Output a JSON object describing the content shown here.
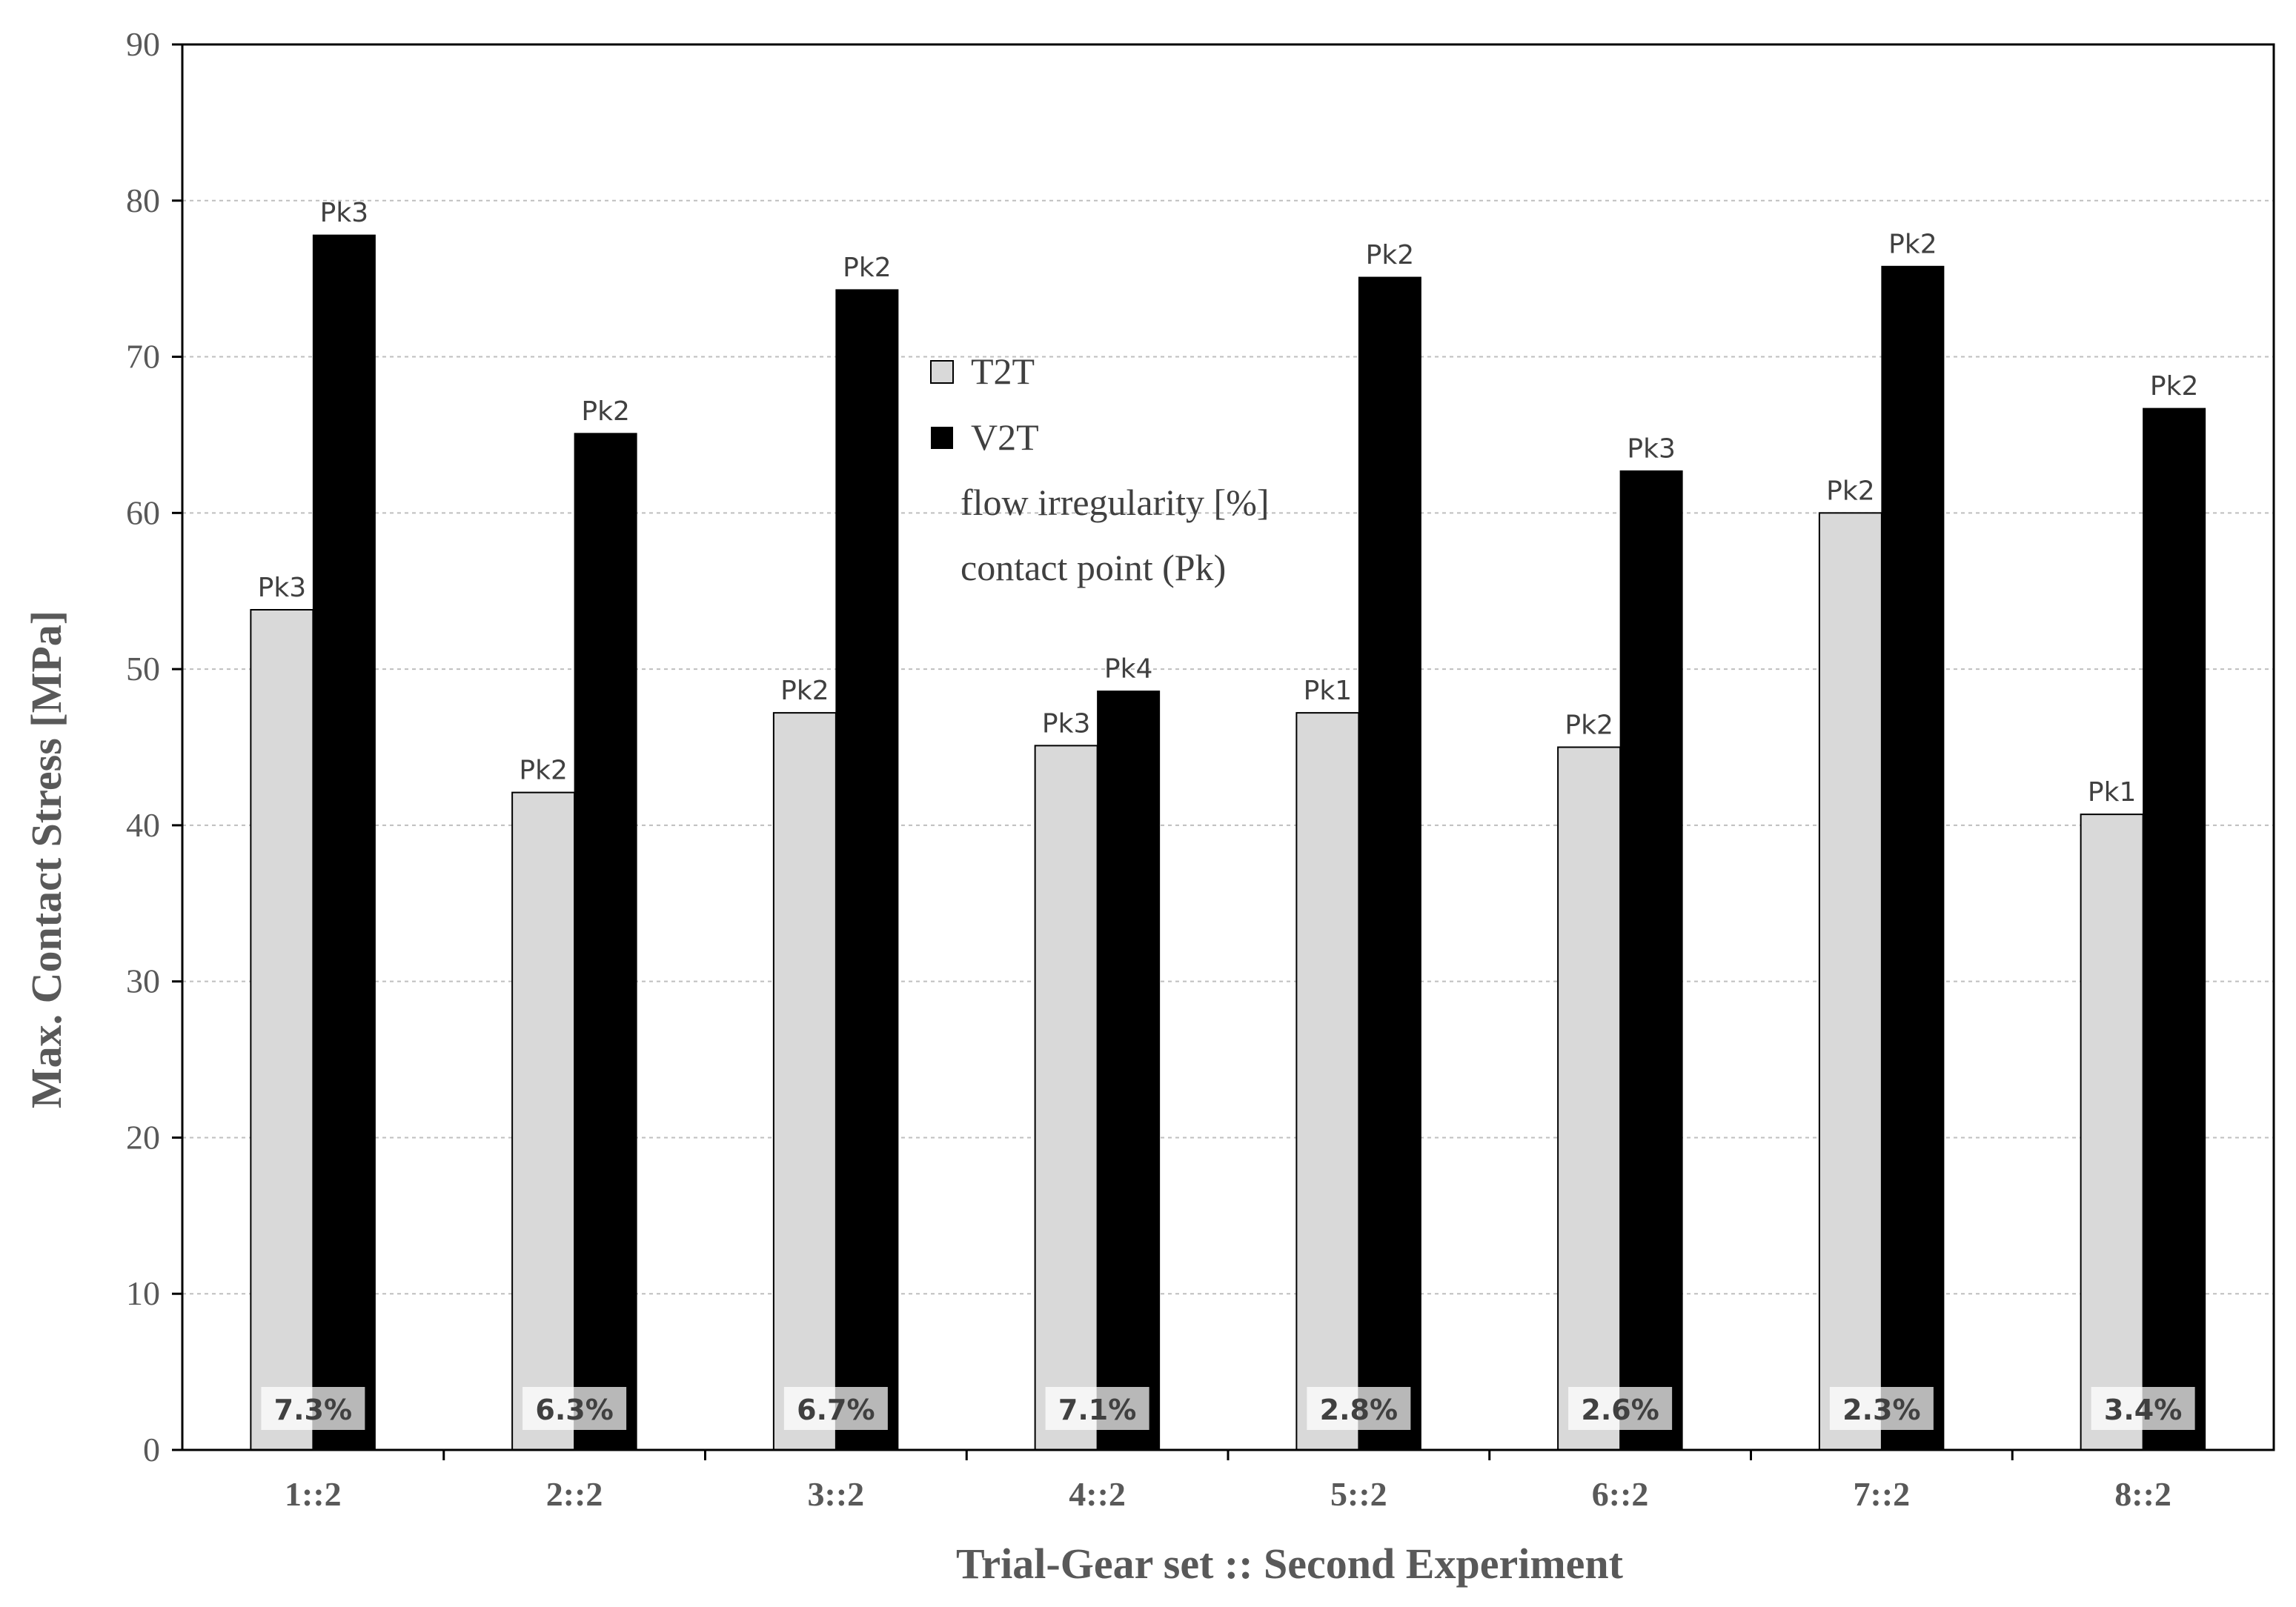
{
  "chart_data": {
    "type": "bar",
    "xlabel": "Trial-Gear set :: Second Experiment",
    "ylabel": "Max. Contact Stress [MPa]",
    "ylim": [
      0,
      90
    ],
    "yticks": [
      "0",
      "10",
      "20",
      "30",
      "40",
      "50",
      "60",
      "70",
      "80",
      "90"
    ],
    "grid": "horizontal dotted",
    "categories": [
      "1::2",
      "2::2",
      "3::2",
      "4::2",
      "5::2",
      "6::2",
      "7::2",
      "8::2"
    ],
    "series": [
      {
        "name": "T2T",
        "color": "#d9d9d9",
        "values": [
          53.8,
          42.1,
          47.2,
          45.1,
          47.2,
          45.0,
          60.0,
          40.7
        ],
        "contact_points": [
          "Pk3",
          "Pk2",
          "Pk2",
          "Pk3",
          "Pk1",
          "Pk2",
          "Pk2",
          "Pk1"
        ]
      },
      {
        "name": "V2T",
        "color": "#000000",
        "values": [
          77.8,
          65.1,
          74.3,
          48.6,
          75.1,
          62.7,
          75.8,
          66.7
        ],
        "contact_points": [
          "Pk3",
          "Pk2",
          "Pk2",
          "Pk4",
          "Pk2",
          "Pk3",
          "Pk2",
          "Pk2"
        ]
      }
    ],
    "flow_irregularity": [
      "7.3%",
      "6.3%",
      "6.7%",
      "7.1%",
      "2.8%",
      "2.6%",
      "2.3%",
      "3.4%"
    ],
    "legend": {
      "placement": "top-center",
      "entries": [
        "T2T",
        "V2T",
        "flow irregularity [%]",
        "contact point (Pk)"
      ]
    }
  }
}
